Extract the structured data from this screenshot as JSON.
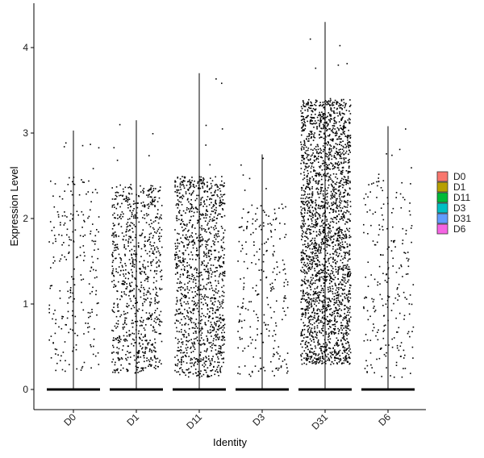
{
  "chart_data": {
    "type": "scatter",
    "subtype": "violin-jitter",
    "title": "",
    "xlabel": "Identity",
    "ylabel": "Expression Level",
    "ylim": [
      -0.25,
      4.5
    ],
    "yticks": [
      0,
      1,
      2,
      3,
      4
    ],
    "grid": false,
    "legend_position": "right",
    "categories": [
      "D0",
      "D1",
      "D11",
      "D3",
      "D31",
      "D6"
    ],
    "series": [
      {
        "name": "D0",
        "color": "#F8766D",
        "max": 3.03,
        "nonzero_points": 240,
        "nonzero_range": [
          0.2,
          2.5
        ]
      },
      {
        "name": "D1",
        "color": "#B79F00",
        "max": 3.15,
        "nonzero_points": 850,
        "nonzero_range": [
          0.2,
          2.4
        ]
      },
      {
        "name": "D11",
        "color": "#00BA38",
        "max": 3.7,
        "nonzero_points": 1200,
        "nonzero_range": [
          0.15,
          2.5
        ]
      },
      {
        "name": "D3",
        "color": "#00BFC4",
        "max": 2.75,
        "nonzero_points": 240,
        "nonzero_range": [
          0.15,
          2.2
        ]
      },
      {
        "name": "D31",
        "color": "#619CFF",
        "max": 4.3,
        "nonzero_points": 2400,
        "nonzero_range": [
          0.3,
          3.4
        ]
      },
      {
        "name": "D6",
        "color": "#F564E3",
        "max": 3.08,
        "nonzero_points": 230,
        "nonzero_range": [
          0.15,
          2.5
        ]
      }
    ]
  }
}
